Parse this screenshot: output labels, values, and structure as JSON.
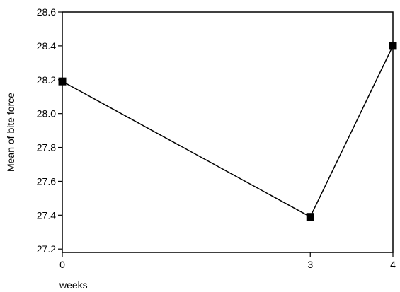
{
  "chart_data": {
    "type": "line",
    "title": "",
    "xlabel": "weeks",
    "ylabel": "Mean of bite force",
    "x": [
      0,
      3,
      4
    ],
    "series": [
      {
        "values": [
          28.19,
          27.39,
          28.4
        ]
      }
    ],
    "xlim": [
      0,
      4
    ],
    "ylim": [
      27.18,
      28.6
    ],
    "x_ticks": [
      0,
      3,
      4
    ],
    "x_tick_labels": [
      "0",
      "3",
      "4"
    ],
    "y_ticks": [
      27.2,
      27.4,
      27.6,
      27.8,
      28.0,
      28.2,
      28.4,
      28.6
    ],
    "y_tick_labels": [
      "27.2",
      "27.4",
      "27.6",
      "27.8",
      "28.0",
      "28.2",
      "28.4",
      "28.6"
    ],
    "marker": "square",
    "grid": false,
    "legend": "none",
    "colors": {
      "line": "#000000",
      "marker": "#000000",
      "axis": "#000000"
    }
  }
}
